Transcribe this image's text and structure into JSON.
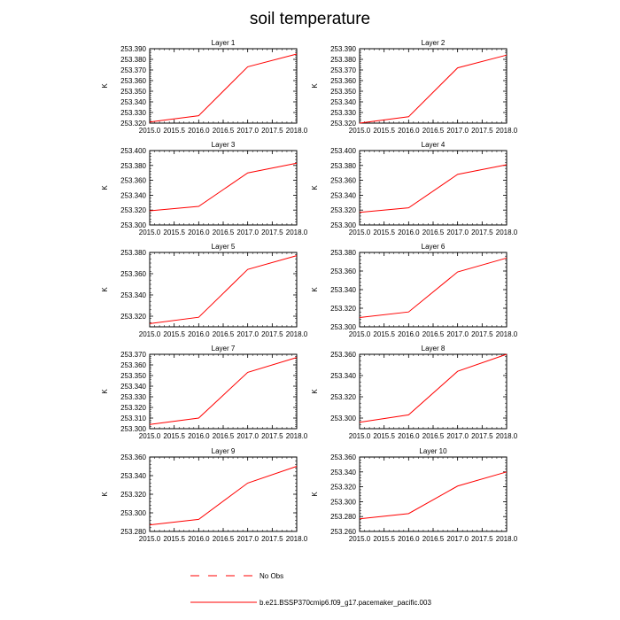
{
  "figure": {
    "title": "soil temperature",
    "line_color": "#ff0000",
    "legend": [
      {
        "label": "No Obs",
        "style": "dashed",
        "color": "#ff0000"
      },
      {
        "label": "b.e21.BSSP370cmip6.f09_g17.pacemaker_pacific.003",
        "style": "solid",
        "color": "#ff0000"
      }
    ]
  },
  "chart_data": [
    {
      "type": "line",
      "title": "Layer 1",
      "ylabel": "K",
      "xlim": [
        2015.0,
        2018.0
      ],
      "ylim": [
        253.32,
        253.39
      ],
      "xticks": [
        "2015.0",
        "2015.5",
        "2016.0",
        "2016.5",
        "2017.0",
        "2017.5",
        "2018.0"
      ],
      "yticks": [
        "253.320",
        "253.330",
        "253.340",
        "253.350",
        "253.360",
        "253.370",
        "253.380",
        "253.390"
      ],
      "x": [
        2015.0,
        2016.0,
        2017.0,
        2018.0
      ],
      "y": [
        253.321,
        253.327,
        253.373,
        253.385
      ]
    },
    {
      "type": "line",
      "title": "Layer 2",
      "ylabel": "K",
      "xlim": [
        2015.0,
        2018.0
      ],
      "ylim": [
        253.32,
        253.39
      ],
      "xticks": [
        "2015.0",
        "2015.5",
        "2016.0",
        "2016.5",
        "2017.0",
        "2017.5",
        "2018.0"
      ],
      "yticks": [
        "253.320",
        "253.330",
        "253.340",
        "253.350",
        "253.360",
        "253.370",
        "253.380",
        "253.390"
      ],
      "x": [
        2015.0,
        2016.0,
        2017.0,
        2018.0
      ],
      "y": [
        253.32,
        253.326,
        253.372,
        253.384
      ]
    },
    {
      "type": "line",
      "title": "Layer 3",
      "ylabel": "K",
      "xlim": [
        2015.0,
        2018.0
      ],
      "ylim": [
        253.3,
        253.4
      ],
      "xticks": [
        "2015.0",
        "2015.5",
        "2016.0",
        "2016.5",
        "2017.0",
        "2017.5",
        "2018.0"
      ],
      "yticks": [
        "253.300",
        "253.320",
        "253.340",
        "253.360",
        "253.380",
        "253.400"
      ],
      "x": [
        2015.0,
        2016.0,
        2017.0,
        2018.0
      ],
      "y": [
        253.319,
        253.325,
        253.37,
        253.383
      ]
    },
    {
      "type": "line",
      "title": "Layer 4",
      "ylabel": "K",
      "xlim": [
        2015.0,
        2018.0
      ],
      "ylim": [
        253.3,
        253.4
      ],
      "xticks": [
        "2015.0",
        "2015.5",
        "2016.0",
        "2016.5",
        "2017.0",
        "2017.5",
        "2018.0"
      ],
      "yticks": [
        "253.300",
        "253.320",
        "253.340",
        "253.360",
        "253.380",
        "253.400"
      ],
      "x": [
        2015.0,
        2016.0,
        2017.0,
        2018.0
      ],
      "y": [
        253.317,
        253.323,
        253.368,
        253.381
      ]
    },
    {
      "type": "line",
      "title": "Layer 5",
      "ylabel": "K",
      "xlim": [
        2015.0,
        2018.0
      ],
      "ylim": [
        253.31,
        253.38
      ],
      "xticks": [
        "2015.0",
        "2015.5",
        "2016.0",
        "2016.5",
        "2017.0",
        "2017.5",
        "2018.0"
      ],
      "yticks": [
        "253.320",
        "253.340",
        "253.360",
        "253.380"
      ],
      "x": [
        2015.0,
        2016.0,
        2017.0,
        2018.0
      ],
      "y": [
        253.313,
        253.319,
        253.364,
        253.377
      ]
    },
    {
      "type": "line",
      "title": "Layer 6",
      "ylabel": "K",
      "xlim": [
        2015.0,
        2018.0
      ],
      "ylim": [
        253.3,
        253.38
      ],
      "xticks": [
        "2015.0",
        "2015.5",
        "2016.0",
        "2016.5",
        "2017.0",
        "2017.5",
        "2018.0"
      ],
      "yticks": [
        "253.300",
        "253.320",
        "253.340",
        "253.360",
        "253.380"
      ],
      "x": [
        2015.0,
        2016.0,
        2017.0,
        2018.0
      ],
      "y": [
        253.31,
        253.316,
        253.359,
        253.374
      ]
    },
    {
      "type": "line",
      "title": "Layer 7",
      "ylabel": "K",
      "xlim": [
        2015.0,
        2018.0
      ],
      "ylim": [
        253.3,
        253.37
      ],
      "xticks": [
        "2015.0",
        "2015.5",
        "2016.0",
        "2016.5",
        "2017.0",
        "2017.5",
        "2018.0"
      ],
      "yticks": [
        "253.300",
        "253.310",
        "253.320",
        "253.330",
        "253.340",
        "253.350",
        "253.360",
        "253.370"
      ],
      "x": [
        2015.0,
        2016.0,
        2017.0,
        2018.0
      ],
      "y": [
        253.304,
        253.31,
        253.353,
        253.367
      ]
    },
    {
      "type": "line",
      "title": "Layer 8",
      "ylabel": "K",
      "xlim": [
        2015.0,
        2018.0
      ],
      "ylim": [
        253.29,
        253.36
      ],
      "xticks": [
        "2015.0",
        "2015.5",
        "2016.0",
        "2016.5",
        "2017.0",
        "2017.5",
        "2018.0"
      ],
      "yticks": [
        "253.300",
        "253.320",
        "253.340",
        "253.360"
      ],
      "x": [
        2015.0,
        2016.0,
        2017.0,
        2018.0
      ],
      "y": [
        253.296,
        253.303,
        253.344,
        253.36
      ]
    },
    {
      "type": "line",
      "title": "Layer 9",
      "ylabel": "K",
      "xlim": [
        2015.0,
        2018.0
      ],
      "ylim": [
        253.28,
        253.36
      ],
      "xticks": [
        "2015.0",
        "2015.5",
        "2016.0",
        "2016.5",
        "2017.0",
        "2017.5",
        "2018.0"
      ],
      "yticks": [
        "253.280",
        "253.300",
        "253.320",
        "253.340",
        "253.360"
      ],
      "x": [
        2015.0,
        2016.0,
        2017.0,
        2018.0
      ],
      "y": [
        253.287,
        253.293,
        253.332,
        253.35
      ]
    },
    {
      "type": "line",
      "title": "Layer 10",
      "ylabel": "K",
      "xlim": [
        2015.0,
        2018.0
      ],
      "ylim": [
        253.26,
        253.36
      ],
      "xticks": [
        "2015.0",
        "2015.5",
        "2016.0",
        "2016.5",
        "2017.0",
        "2017.5",
        "2018.0"
      ],
      "yticks": [
        "253.260",
        "253.280",
        "253.300",
        "253.320",
        "253.340",
        "253.360"
      ],
      "x": [
        2015.0,
        2016.0,
        2017.0,
        2018.0
      ],
      "y": [
        253.277,
        253.284,
        253.321,
        253.34
      ]
    }
  ]
}
